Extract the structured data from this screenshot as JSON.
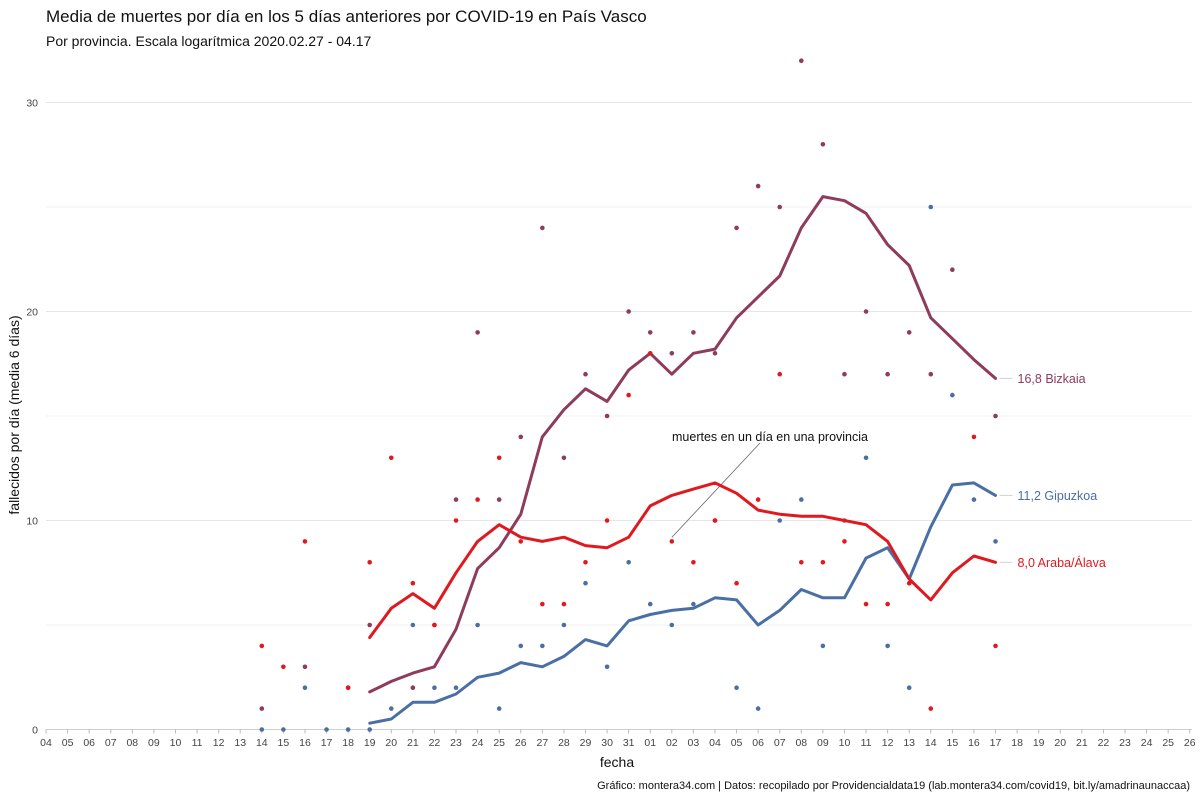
{
  "chart_data": {
    "type": "line",
    "title": "Media de muertes por día en los 5 días anteriores por COVID-19 en País Vasco",
    "subtitle": "Por provincia. Escala logarítmica  2020.02.27 - 04.17",
    "xlabel": "fecha",
    "ylabel": "fallecidos por día (media 6 días)",
    "caption": "Gráfico: montera34.com | Datos: recopilado por Providencialdata19 (lab.montera34.com/covid19, bit.ly/amadrinaunaccaa)",
    "annotation": "muertes en un día en una provincia",
    "ylim": [
      0,
      32
    ],
    "yticks": [
      0,
      10,
      20,
      30
    ],
    "grid": true,
    "legend": "none",
    "x_tick_labels": [
      "04",
      "05",
      "06",
      "07",
      "08",
      "09",
      "10",
      "11",
      "12",
      "13",
      "14",
      "15",
      "16",
      "17",
      "18",
      "19",
      "20",
      "21",
      "22",
      "23",
      "24",
      "25",
      "26",
      "27",
      "28",
      "29",
      "30",
      "31",
      "01",
      "02",
      "03",
      "04",
      "05",
      "06",
      "07",
      "08",
      "09",
      "10",
      "11",
      "12",
      "13",
      "14",
      "15",
      "16",
      "17",
      "18",
      "19",
      "20",
      "21",
      "22",
      "23",
      "24",
      "25",
      "26"
    ],
    "series": [
      {
        "name": "Bizkaia",
        "end_label": "16,8 Bizkaia",
        "color": "#8e3b5c",
        "line": [
          [
            15,
            1.8
          ],
          [
            16,
            2.3
          ],
          [
            17,
            2.7
          ],
          [
            18,
            3.0
          ],
          [
            19,
            4.8
          ],
          [
            20,
            7.7
          ],
          [
            21,
            8.7
          ],
          [
            22,
            10.3
          ],
          [
            23,
            14.0
          ],
          [
            24,
            15.3
          ],
          [
            25,
            16.3
          ],
          [
            26,
            15.7
          ],
          [
            27,
            17.2
          ],
          [
            28,
            18.0
          ],
          [
            29,
            17.0
          ],
          [
            30,
            18.0
          ],
          [
            31,
            18.2
          ],
          [
            32,
            19.7
          ],
          [
            33,
            20.7
          ],
          [
            34,
            21.7
          ],
          [
            35,
            24.0
          ],
          [
            36,
            25.5
          ],
          [
            37,
            25.3
          ],
          [
            38,
            24.7
          ],
          [
            39,
            23.2
          ],
          [
            40,
            22.2
          ],
          [
            41,
            19.7
          ],
          [
            42,
            18.7
          ],
          [
            43,
            17.7
          ],
          [
            44,
            16.8
          ]
        ],
        "points": [
          [
            10,
            1
          ],
          [
            12,
            3
          ],
          [
            14,
            2
          ],
          [
            15,
            5
          ],
          [
            17,
            2
          ],
          [
            18,
            5
          ],
          [
            19,
            11
          ],
          [
            20,
            19
          ],
          [
            21,
            11
          ],
          [
            22,
            14
          ],
          [
            23,
            24
          ],
          [
            24,
            13
          ],
          [
            25,
            17
          ],
          [
            26,
            15
          ],
          [
            27,
            20
          ],
          [
            28,
            19
          ],
          [
            29,
            18
          ],
          [
            30,
            19
          ],
          [
            31,
            18
          ],
          [
            32,
            24
          ],
          [
            33,
            26
          ],
          [
            34,
            25
          ],
          [
            35,
            32
          ],
          [
            36,
            28
          ],
          [
            37,
            17
          ],
          [
            38,
            20
          ],
          [
            39,
            17
          ],
          [
            40,
            19
          ],
          [
            41,
            17
          ],
          [
            42,
            22
          ],
          [
            44,
            15
          ]
        ]
      },
      {
        "name": "Gipuzkoa",
        "end_label": "11,2 Gipuzkoa",
        "color": "#4a6fa5",
        "line": [
          [
            15,
            0.3
          ],
          [
            16,
            0.5
          ],
          [
            17,
            1.3
          ],
          [
            18,
            1.3
          ],
          [
            19,
            1.7
          ],
          [
            20,
            2.5
          ],
          [
            21,
            2.7
          ],
          [
            22,
            3.2
          ],
          [
            23,
            3.0
          ],
          [
            24,
            3.5
          ],
          [
            25,
            4.3
          ],
          [
            26,
            4.0
          ],
          [
            27,
            5.2
          ],
          [
            28,
            5.5
          ],
          [
            29,
            5.7
          ],
          [
            30,
            5.8
          ],
          [
            31,
            6.3
          ],
          [
            32,
            6.2
          ],
          [
            33,
            5.0
          ],
          [
            34,
            5.7
          ],
          [
            35,
            6.7
          ],
          [
            36,
            6.3
          ],
          [
            37,
            6.3
          ],
          [
            38,
            8.2
          ],
          [
            39,
            8.7
          ],
          [
            40,
            7.2
          ],
          [
            41,
            9.7
          ],
          [
            42,
            11.7
          ],
          [
            43,
            11.8
          ],
          [
            44,
            11.2
          ]
        ],
        "points": [
          [
            10,
            0
          ],
          [
            11,
            0
          ],
          [
            12,
            2
          ],
          [
            13,
            0
          ],
          [
            14,
            0
          ],
          [
            15,
            0
          ],
          [
            16,
            1
          ],
          [
            17,
            5
          ],
          [
            18,
            2
          ],
          [
            19,
            2
          ],
          [
            20,
            5
          ],
          [
            21,
            1
          ],
          [
            22,
            4
          ],
          [
            23,
            4
          ],
          [
            24,
            5
          ],
          [
            25,
            7
          ],
          [
            26,
            3
          ],
          [
            27,
            8
          ],
          [
            28,
            6
          ],
          [
            29,
            5
          ],
          [
            30,
            6
          ],
          [
            31,
            10
          ],
          [
            32,
            2
          ],
          [
            33,
            1
          ],
          [
            34,
            10
          ],
          [
            35,
            11
          ],
          [
            36,
            4
          ],
          [
            37,
            10
          ],
          [
            38,
            13
          ],
          [
            39,
            4
          ],
          [
            40,
            2
          ],
          [
            41,
            25
          ],
          [
            42,
            16
          ],
          [
            43,
            11
          ],
          [
            44,
            9
          ]
        ]
      },
      {
        "name": "Araba/Álava",
        "end_label": "8,0 Araba/Álava",
        "color": "#e0191f",
        "line": [
          [
            15,
            4.4
          ],
          [
            16,
            5.8
          ],
          [
            17,
            6.5
          ],
          [
            18,
            5.8
          ],
          [
            19,
            7.5
          ],
          [
            20,
            9.0
          ],
          [
            21,
            9.8
          ],
          [
            22,
            9.2
          ],
          [
            23,
            9.0
          ],
          [
            24,
            9.2
          ],
          [
            25,
            8.8
          ],
          [
            26,
            8.7
          ],
          [
            27,
            9.2
          ],
          [
            28,
            10.7
          ],
          [
            29,
            11.2
          ],
          [
            30,
            11.5
          ],
          [
            31,
            11.8
          ],
          [
            32,
            11.3
          ],
          [
            33,
            10.5
          ],
          [
            34,
            10.3
          ],
          [
            35,
            10.2
          ],
          [
            36,
            10.2
          ],
          [
            37,
            10.0
          ],
          [
            38,
            9.8
          ],
          [
            39,
            9.0
          ],
          [
            40,
            7.2
          ],
          [
            41,
            6.2
          ],
          [
            42,
            7.5
          ],
          [
            43,
            8.3
          ],
          [
            44,
            8.0
          ]
        ],
        "points": [
          [
            10,
            4
          ],
          [
            11,
            3
          ],
          [
            12,
            9
          ],
          [
            14,
            2
          ],
          [
            15,
            8
          ],
          [
            16,
            13
          ],
          [
            17,
            7
          ],
          [
            18,
            5
          ],
          [
            19,
            10
          ],
          [
            20,
            11
          ],
          [
            21,
            13
          ],
          [
            22,
            9
          ],
          [
            23,
            6
          ],
          [
            24,
            6
          ],
          [
            25,
            8
          ],
          [
            26,
            10
          ],
          [
            27,
            16
          ],
          [
            28,
            18
          ],
          [
            29,
            9
          ],
          [
            30,
            8
          ],
          [
            31,
            10
          ],
          [
            32,
            7
          ],
          [
            33,
            11
          ],
          [
            34,
            17
          ],
          [
            35,
            8
          ],
          [
            36,
            8
          ],
          [
            37,
            9
          ],
          [
            38,
            6
          ],
          [
            39,
            6
          ],
          [
            40,
            7
          ],
          [
            41,
            1
          ],
          [
            43,
            14
          ],
          [
            44,
            4
          ]
        ]
      }
    ]
  }
}
